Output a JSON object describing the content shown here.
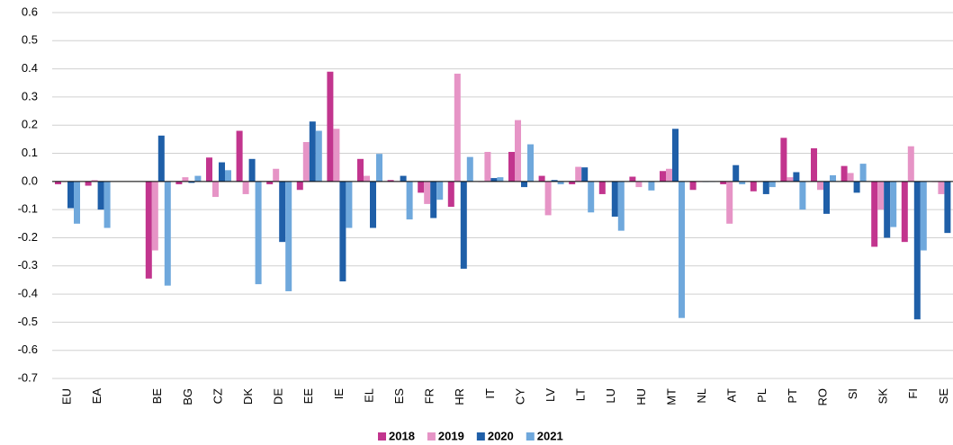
{
  "chart_data": {
    "type": "bar",
    "categories": [
      "EU",
      "EA",
      null,
      "BE",
      "BG",
      "CZ",
      "DK",
      "DE",
      "EE",
      "IE",
      "EL",
      "ES",
      "FR",
      "HR",
      "IT",
      "CY",
      "LV",
      "LT",
      "LU",
      "HU",
      "MT",
      "NL",
      "AT",
      "PL",
      "PT",
      "RO",
      "SI",
      "SK",
      "FI",
      "SE"
    ],
    "series": [
      {
        "name": "2018",
        "color": "#c2358e",
        "values": [
          -0.01,
          -0.015,
          null,
          -0.345,
          -0.01,
          0.085,
          0.18,
          -0.01,
          -0.03,
          0.39,
          0.08,
          0.005,
          -0.04,
          -0.09,
          0.0,
          0.105,
          0.02,
          -0.01,
          -0.045,
          0.017,
          0.037,
          -0.03,
          -0.01,
          -0.035,
          0.155,
          0.118,
          0.055,
          -0.232,
          -0.215,
          0.0
        ]
      },
      {
        "name": "2019",
        "color": "#e694c6",
        "values": [
          0.0,
          0.005,
          null,
          -0.245,
          0.015,
          -0.055,
          -0.045,
          0.045,
          0.14,
          0.187,
          0.02,
          0.0,
          -0.08,
          0.383,
          0.105,
          0.218,
          -0.12,
          0.052,
          0.0,
          -0.02,
          0.045,
          0.0,
          -0.15,
          0.0,
          0.015,
          -0.03,
          0.03,
          -0.1,
          0.125,
          -0.045
        ]
      },
      {
        "name": "2020",
        "color": "#1f5fa8",
        "values": [
          -0.095,
          -0.1,
          null,
          0.163,
          -0.005,
          0.068,
          0.08,
          -0.215,
          0.213,
          -0.355,
          -0.165,
          0.02,
          -0.13,
          -0.31,
          0.012,
          -0.02,
          0.005,
          0.05,
          -0.125,
          0.0,
          0.187,
          0.0,
          0.058,
          -0.045,
          0.033,
          -0.115,
          -0.04,
          -0.2,
          -0.49,
          -0.183
        ]
      },
      {
        "name": "2021",
        "color": "#6fa8dc",
        "values": [
          -0.15,
          -0.165,
          null,
          -0.37,
          0.02,
          0.04,
          -0.365,
          -0.39,
          0.18,
          -0.165,
          0.098,
          -0.135,
          -0.065,
          0.087,
          0.015,
          0.132,
          -0.01,
          -0.11,
          -0.175,
          -0.032,
          -0.485,
          0.0,
          -0.01,
          -0.02,
          -0.1,
          0.022,
          0.063,
          -0.162,
          -0.245,
          null
        ]
      }
    ],
    "ylim": [
      -0.7,
      0.6
    ],
    "yticks": [
      -0.7,
      -0.6,
      -0.5,
      -0.4,
      -0.3,
      -0.2,
      -0.1,
      {
        "value": 0,
        "label": "0.0"
      },
      0.1,
      0.2,
      0.3,
      0.4,
      0.5,
      0.6
    ],
    "grid": true,
    "legend": "bottom"
  }
}
